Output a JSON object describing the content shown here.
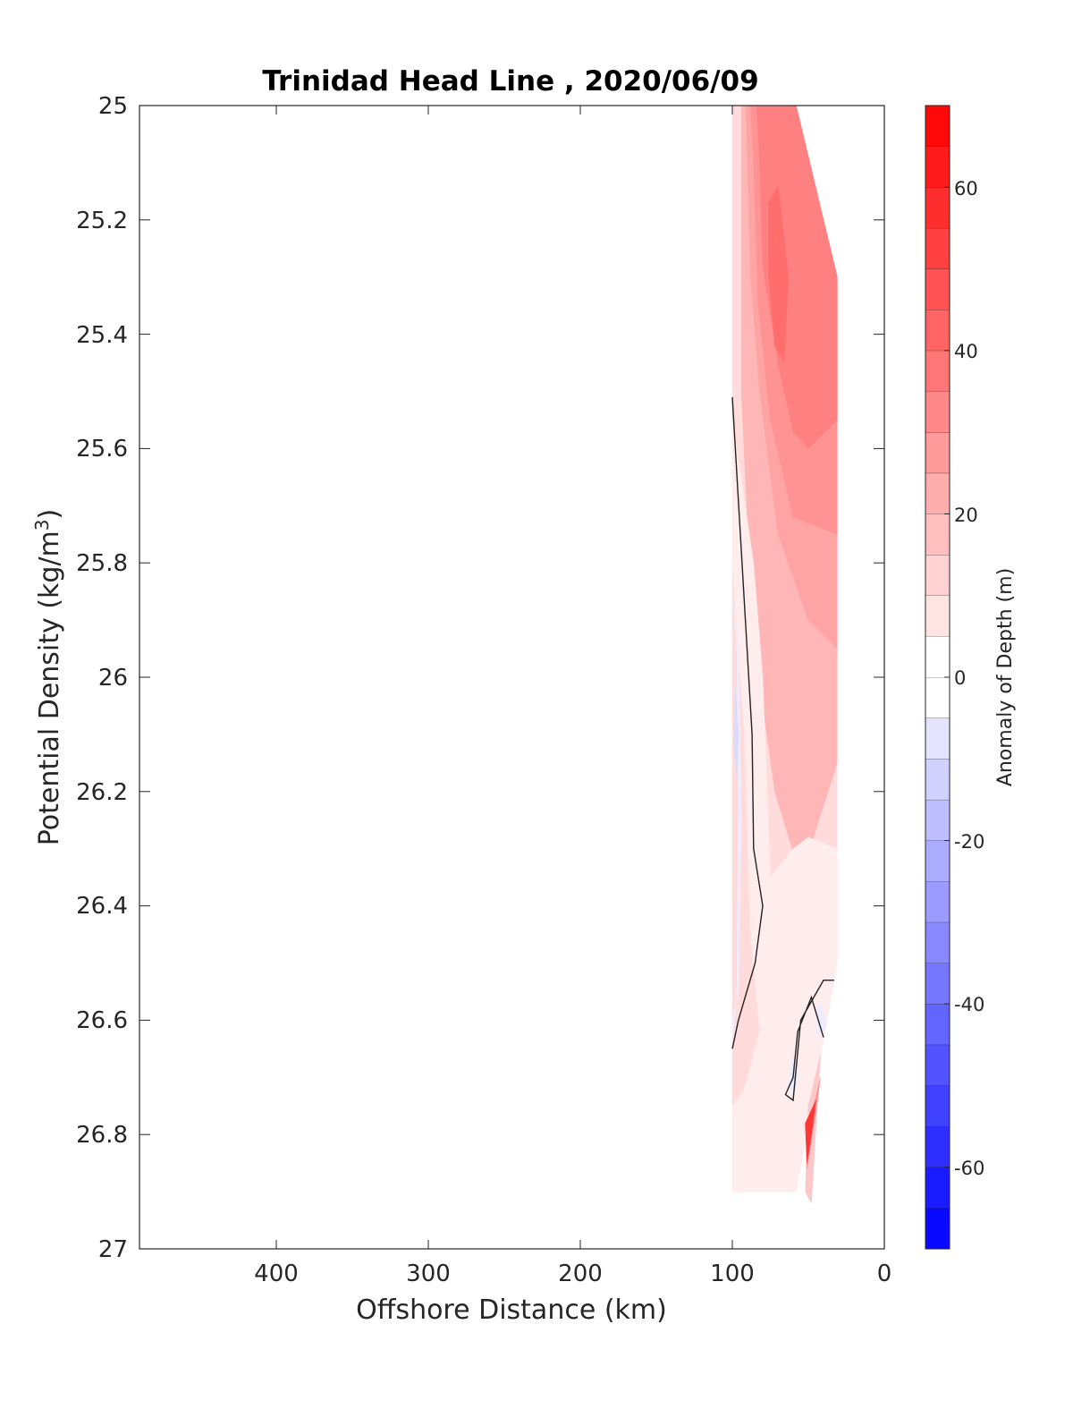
{
  "chart_data": {
    "type": "heatmap",
    "title": "Trinidad Head Line , 2020/06/09",
    "xlabel": "Offshore Distance (km)",
    "ylabel_text": "Potential Density (kg/m",
    "ylabel_sup": "3",
    "ylabel_close": ")",
    "xlim": [
      490,
      0
    ],
    "x_reversed": true,
    "ylim": [
      25,
      27
    ],
    "y_reversed": true,
    "x_ticks": [
      400,
      300,
      200,
      100,
      0
    ],
    "x_tick_labels": [
      "400",
      "300",
      "200",
      "100",
      "0"
    ],
    "y_ticks": [
      25,
      25.2,
      25.4,
      25.6,
      25.8,
      26,
      26.2,
      26.4,
      26.6,
      26.8,
      27
    ],
    "y_tick_labels": [
      "25",
      "25.2",
      "25.4",
      "25.6",
      "25.8",
      "26",
      "26.2",
      "26.4",
      "26.6",
      "26.8",
      "27"
    ],
    "colorbar": {
      "label": "Anomaly of Depth (m)",
      "range": [
        -70,
        70
      ],
      "level_step": 5,
      "ticks": [
        60,
        40,
        20,
        0,
        -20,
        -40,
        -60
      ],
      "tick_labels": [
        "60",
        "40",
        "20",
        "0",
        "-20",
        "-40",
        "-60"
      ],
      "colormap": "blue-white-red",
      "low_color": "#0000ff",
      "mid_color": "#ffffff",
      "high_color": "#ff0000"
    },
    "data_extent": {
      "x_min": 31,
      "x_max": 100,
      "y_min": 25,
      "y_max": 26.9
    },
    "contour_regions": [
      {
        "value": 10,
        "points": [
          [
            100,
            25
          ],
          [
            58,
            25
          ],
          [
            31,
            25.3
          ],
          [
            31,
            26.5
          ],
          [
            58,
            26.9
          ],
          [
            100,
            26.9
          ]
        ]
      },
      {
        "value": 20,
        "points": [
          [
            94,
            25
          ],
          [
            58,
            25
          ],
          [
            31,
            25.3
          ],
          [
            31,
            26.15
          ],
          [
            55,
            26.35
          ],
          [
            72,
            26.2
          ],
          [
            80,
            26.05
          ],
          [
            88,
            25.85
          ],
          [
            94,
            25.5
          ]
        ]
      },
      {
        "value": 25,
        "points": [
          [
            91,
            25
          ],
          [
            58,
            25
          ],
          [
            31,
            25.3
          ],
          [
            31,
            25.95
          ],
          [
            50,
            25.9
          ],
          [
            70,
            25.75
          ],
          [
            82,
            25.5
          ],
          [
            88,
            25.3
          ]
        ]
      },
      {
        "value": 30,
        "points": [
          [
            88,
            25
          ],
          [
            58,
            25
          ],
          [
            31,
            25.3
          ],
          [
            31,
            25.75
          ],
          [
            60,
            25.72
          ],
          [
            75,
            25.55
          ],
          [
            83,
            25.35
          ],
          [
            86,
            25.1
          ]
        ]
      },
      {
        "value": 35,
        "points": [
          [
            84,
            25
          ],
          [
            58,
            25
          ],
          [
            31,
            25.3
          ],
          [
            31,
            25.55
          ],
          [
            50,
            25.6
          ],
          [
            60,
            25.57
          ],
          [
            70,
            25.45
          ],
          [
            80,
            25.28
          ],
          [
            82,
            25.1
          ]
        ]
      },
      {
        "value": 40,
        "points": [
          [
            76,
            25.17
          ],
          [
            70,
            25.14
          ],
          [
            63,
            25.3
          ],
          [
            66,
            25.45
          ],
          [
            72,
            25.42
          ],
          [
            76,
            25.3
          ]
        ]
      },
      {
        "value": 5,
        "points": [
          [
            100,
            25.8
          ],
          [
            92,
            26.1
          ],
          [
            88,
            26.45
          ],
          [
            82,
            26.62
          ],
          [
            92,
            26.72
          ],
          [
            100,
            26.75
          ],
          [
            100,
            26.9
          ],
          [
            58,
            26.9
          ],
          [
            31,
            26.5
          ],
          [
            31,
            26.3
          ],
          [
            50,
            26.28
          ],
          [
            60,
            26.3
          ],
          [
            75,
            26.35
          ],
          [
            80,
            26.0
          ],
          [
            86,
            25.8
          ],
          [
            100,
            25.55
          ]
        ]
      },
      {
        "value": 15,
        "points": [
          [
            50,
            26.75
          ],
          [
            42,
            26.66
          ],
          [
            48,
            26.92
          ],
          [
            52,
            26.9
          ]
        ]
      },
      {
        "value": 30,
        "points": [
          [
            51,
            26.8
          ],
          [
            42,
            26.7
          ],
          [
            45,
            26.76
          ],
          [
            51,
            26.86
          ]
        ]
      },
      {
        "value": 55,
        "points": [
          [
            52,
            26.78
          ],
          [
            45,
            26.74
          ],
          [
            49,
            26.82
          ],
          [
            51,
            26.85
          ]
        ]
      }
    ],
    "negative_regions": [
      {
        "value": -5,
        "points": [
          [
            100,
            25.85
          ],
          [
            96,
            25.95
          ],
          [
            94,
            26.25
          ],
          [
            96,
            26.55
          ],
          [
            100,
            26.6
          ],
          [
            100,
            26.65
          ],
          [
            97,
            26.55
          ],
          [
            96,
            26.2
          ],
          [
            97,
            25.95
          ]
        ]
      },
      {
        "value": -5,
        "points": [
          [
            42,
            26.57
          ],
          [
            38,
            26.61
          ],
          [
            44,
            26.63
          ],
          [
            45,
            26.58
          ]
        ]
      },
      {
        "value": -5,
        "points": [
          [
            60,
            26.66
          ],
          [
            57,
            26.7
          ],
          [
            60,
            26.73
          ],
          [
            63,
            26.71
          ]
        ]
      },
      {
        "value": -10,
        "points": [
          [
            98,
            26.02
          ],
          [
            96,
            26.1
          ],
          [
            97,
            26.18
          ],
          [
            99,
            26.12
          ]
        ]
      }
    ],
    "zero_contours": [
      {
        "points": [
          [
            100,
            25.51
          ],
          [
            87,
            26.1
          ],
          [
            86,
            26.3
          ],
          [
            80,
            26.4
          ],
          [
            85,
            26.5
          ],
          [
            96,
            26.6
          ],
          [
            100,
            26.65
          ]
        ]
      },
      {
        "points": [
          [
            33,
            26.53
          ],
          [
            40,
            26.53
          ],
          [
            55,
            26.6
          ],
          [
            60,
            26.74
          ],
          [
            65,
            26.73
          ],
          [
            60,
            26.7
          ],
          [
            57,
            26.62
          ],
          [
            48,
            26.56
          ],
          [
            40,
            26.63
          ]
        ]
      }
    ]
  }
}
